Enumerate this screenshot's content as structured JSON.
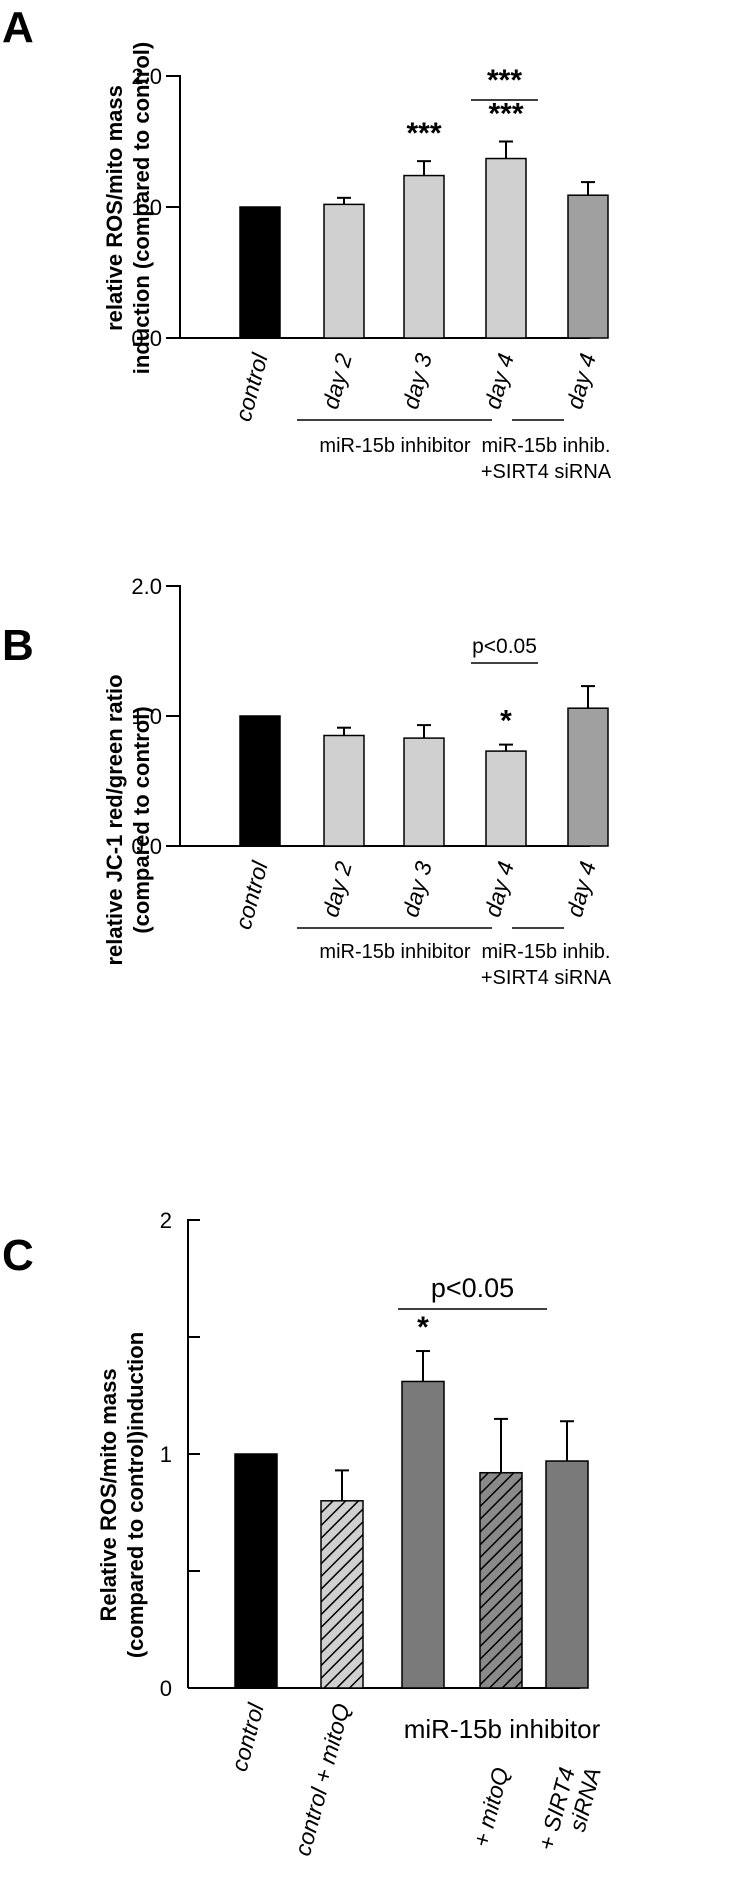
{
  "chart_data": [
    {
      "panel": "A",
      "type": "bar",
      "ylabel_lines": [
        "relative ROS/mito mass",
        "induction (compared to control)"
      ],
      "ylim": [
        0,
        2.0
      ],
      "yticks": [
        "0.0",
        "1.0",
        "2.0"
      ],
      "ytick_values": [
        0,
        1.0,
        2.0
      ],
      "categories": [
        "control",
        "day 2",
        "day 3",
        "day 4",
        "day 4"
      ],
      "values": [
        1.0,
        1.02,
        1.24,
        1.37,
        1.09
      ],
      "errors": [
        0,
        0.05,
        0.11,
        0.13,
        0.1
      ],
      "colors": [
        "#000000",
        "#d0d0d0",
        "#d0d0d0",
        "#d0d0d0",
        "#a0a0a0"
      ],
      "significance": [
        "",
        "",
        "***",
        "***",
        ""
      ],
      "comparison": {
        "from": 3,
        "to": 4,
        "label": "***"
      },
      "groups": [
        {
          "label": "miR-15b inhibitor",
          "from": 1,
          "to": 3
        },
        {
          "label": "miR-15b inhib.",
          "label2": "+SIRT4 siRNA",
          "from": 4,
          "to": 4
        }
      ]
    },
    {
      "panel": "B",
      "type": "bar",
      "ylabel_lines": [
        "relative JC-1 red/green ratio",
        "(compared to control)"
      ],
      "ylim": [
        0,
        2.0
      ],
      "yticks": [
        "0.0",
        "1.0",
        "2.0"
      ],
      "ytick_values": [
        0,
        1.0,
        2.0
      ],
      "categories": [
        "control",
        "day 2",
        "day 3",
        "day 4",
        "day 4"
      ],
      "values": [
        1.0,
        0.85,
        0.83,
        0.73,
        1.06
      ],
      "errors": [
        0,
        0.06,
        0.1,
        0.05,
        0.17
      ],
      "colors": [
        "#000000",
        "#d0d0d0",
        "#d0d0d0",
        "#d0d0d0",
        "#a0a0a0"
      ],
      "significance": [
        "",
        "",
        "",
        "*",
        ""
      ],
      "comparison": {
        "from": 3,
        "to": 4,
        "label": "p<0.05"
      },
      "groups": [
        {
          "label": "miR-15b inhibitor",
          "from": 1,
          "to": 3
        },
        {
          "label": "miR-15b inhib.",
          "label2": "+SIRT4 siRNA",
          "from": 4,
          "to": 4
        }
      ]
    },
    {
      "panel": "C",
      "type": "bar",
      "ylabel_lines": [
        "Relative ROS/mito mass",
        "(compared to control)induction"
      ],
      "ylim": [
        0,
        2
      ],
      "yticks": [
        "0",
        "1",
        "2"
      ],
      "ytick_values": [
        0,
        1,
        2
      ],
      "minor_ticks": [
        0.5,
        1.5
      ],
      "categories": [
        "control",
        "control + mitoQ",
        "",
        "+ mitoQ",
        "+ SIRT4 siRNA"
      ],
      "values": [
        1.0,
        0.8,
        1.31,
        0.92,
        0.97
      ],
      "errors": [
        0,
        0.13,
        0.13,
        0.23,
        0.17
      ],
      "colors": [
        "#000000",
        "#c8c8c8",
        "#7a7a7a",
        "#7a7a7a",
        "#7a7a7a"
      ],
      "hatched": [
        false,
        true,
        false,
        true,
        false
      ],
      "significance": [
        "",
        "",
        "*",
        "",
        ""
      ],
      "comparison": {
        "from": 2,
        "to": 4,
        "label": "p<0.05"
      },
      "groups": [
        {
          "label": "miR-15b inhibitor",
          "from": 2,
          "to": 4
        }
      ]
    }
  ]
}
